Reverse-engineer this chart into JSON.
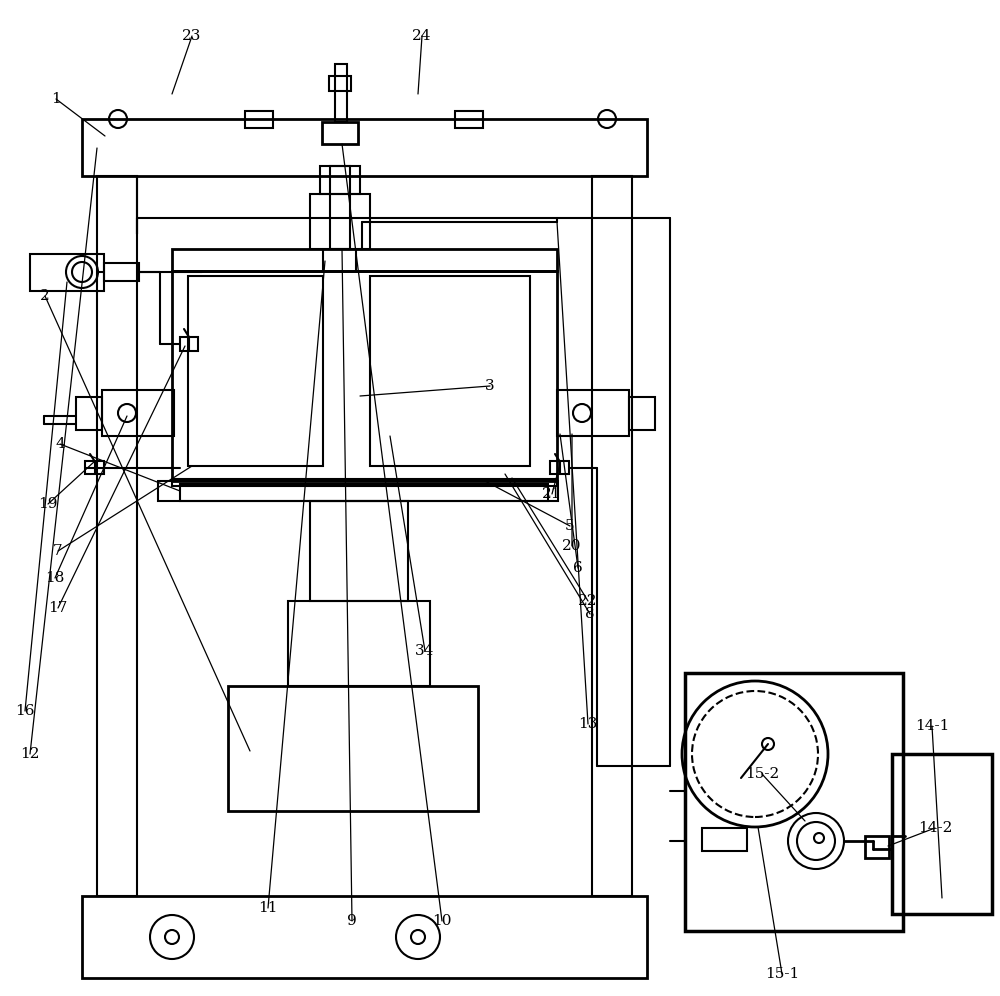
{
  "bg_color": "#ffffff",
  "line_color": "#000000",
  "lw": 1.5
}
